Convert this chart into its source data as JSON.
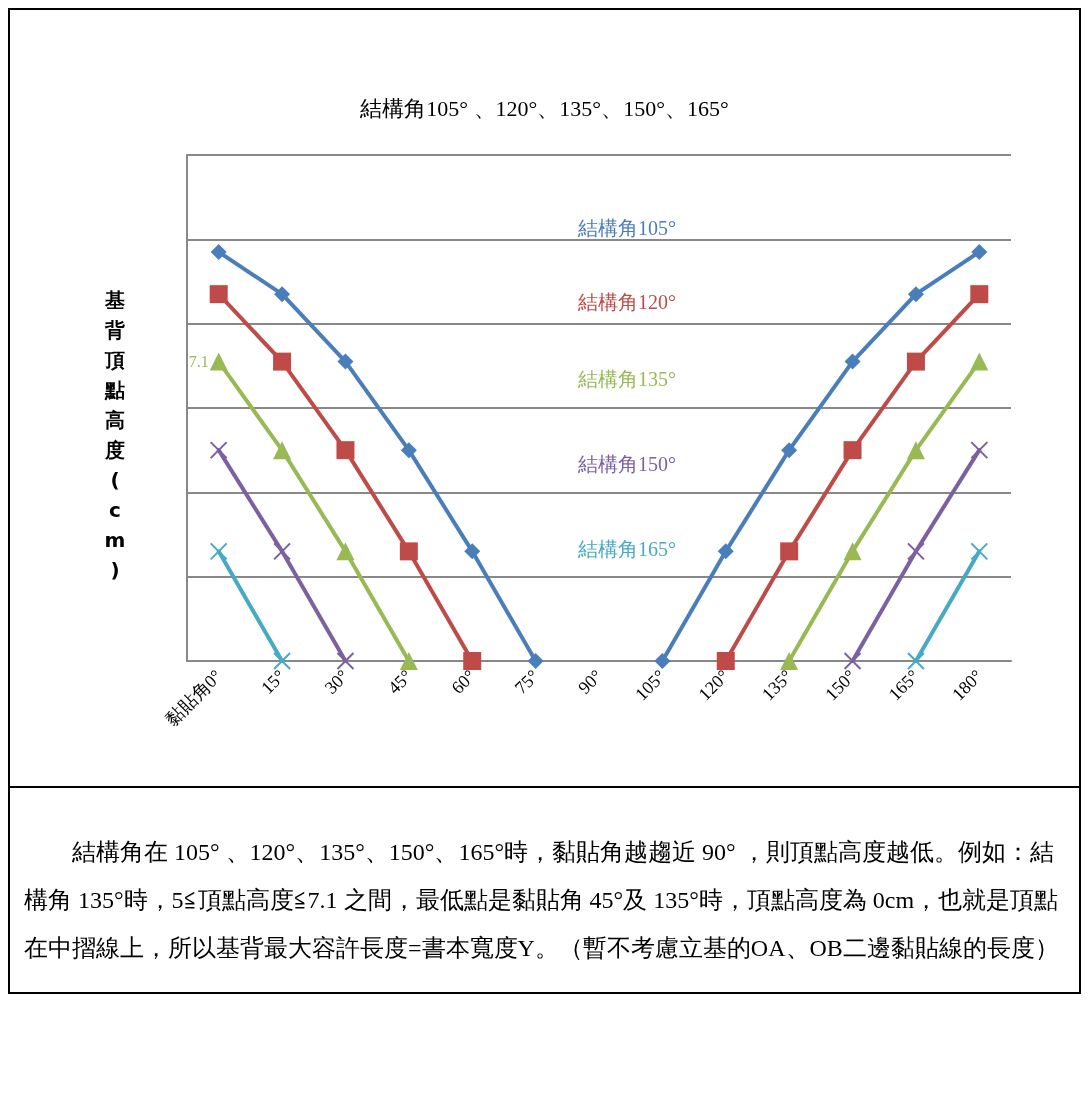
{
  "chart_data": {
    "type": "line",
    "title": "結構角105° 、120°、135°、150°、165°",
    "ylabel": "基背頂點高度(cm)",
    "categories": [
      "黏貼角0°",
      "15°",
      "30°",
      "45°",
      "60°",
      "75°",
      "90°",
      "105°",
      "120°",
      "135°",
      "150°",
      "165°",
      "180°"
    ],
    "ylim": [
      0,
      12
    ],
    "yticks": [
      {
        "value": 0,
        "label": null
      },
      {
        "value": 2,
        "label": null
      },
      {
        "value": 4,
        "label": null
      },
      {
        "value": 6,
        "label": null
      },
      {
        "value": 8,
        "label": null
      },
      {
        "value": 10,
        "label": null
      },
      {
        "value": 12,
        "label": null
      }
    ],
    "tick_labels": "x",
    "grid": "y",
    "legend": false,
    "series": [
      {
        "name": "結構角105°",
        "color": "#4a7ebb",
        "marker": "diamond",
        "values": [
          9.7,
          8.7,
          7.1,
          5.0,
          2.6,
          0,
          null,
          0,
          2.6,
          5.0,
          7.1,
          8.7,
          9.7
        ]
      },
      {
        "name": "結構角120°",
        "color": "#be4b48",
        "marker": "square",
        "values": [
          8.7,
          7.1,
          5.0,
          2.6,
          0,
          null,
          null,
          null,
          0,
          2.6,
          5.0,
          7.1,
          8.7
        ]
      },
      {
        "name": "結構角135°",
        "color": "#98b954",
        "marker": "triangle",
        "values": [
          7.1,
          5.0,
          2.6,
          0,
          null,
          null,
          null,
          null,
          null,
          0,
          2.6,
          5.0,
          7.1
        ],
        "value_labels": [
          "7.1",
          null,
          null,
          null,
          null,
          null,
          null,
          null,
          null,
          null,
          null,
          null,
          null
        ]
      },
      {
        "name": "結構角150°",
        "color": "#7d60a0",
        "marker": "cross",
        "values": [
          5.0,
          2.6,
          0,
          null,
          null,
          null,
          null,
          null,
          null,
          null,
          0,
          2.6,
          5.0
        ]
      },
      {
        "name": "結構角165°",
        "color": "#46aac5",
        "marker": "cross",
        "values": [
          2.6,
          0,
          null,
          null,
          null,
          null,
          null,
          null,
          null,
          null,
          null,
          0,
          2.6
        ]
      }
    ],
    "annotations": [
      "結構角在 105° 、120°、135°、150°、165°時，黏貼角越趨近 90° ，則頂點高度越低。例如：結構角 135°時，5≦頂點高度≦7.1 之間，最低點是黏貼角 45°及 135°時，頂點高度為 0cm，也就是頂點在中摺線上，所以基背最大容許長度=書本寬度Y。（暫不考慮立基的OA、OB二邊黏貼線的長度）"
    ]
  }
}
